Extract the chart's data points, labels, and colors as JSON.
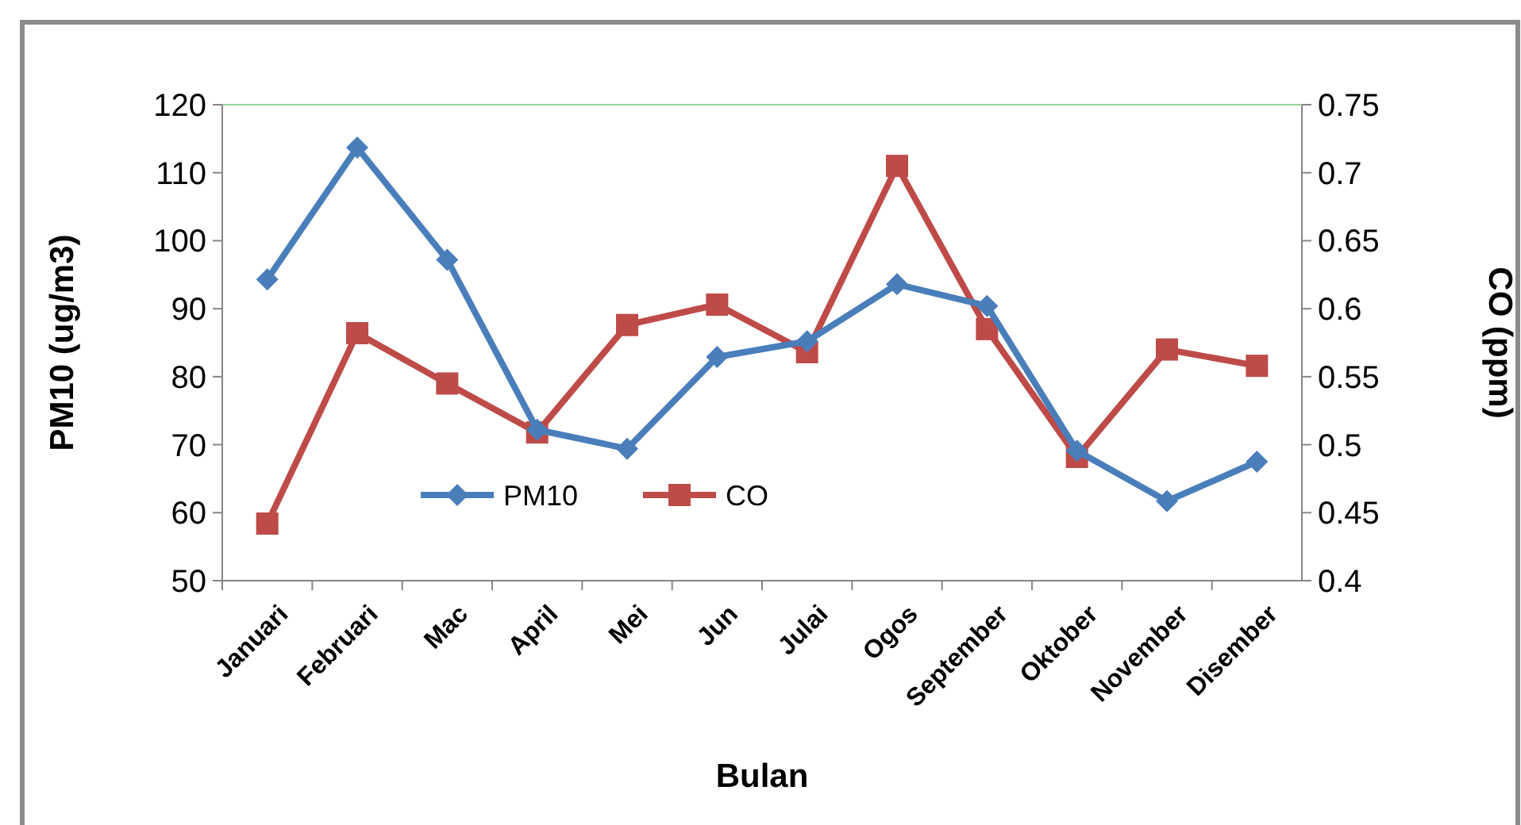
{
  "chart_data": {
    "type": "line",
    "xlabel": "Bulan",
    "ylabel": "PM10 (ug/m3)",
    "y2label": "CO (ppm)",
    "categories": [
      "Januari",
      "Februari",
      "Mac",
      "April",
      "Mei",
      "Jun",
      "Julai",
      "Ogos",
      "September",
      "Oktober",
      "November",
      "Disember"
    ],
    "series": [
      {
        "name": "PM10",
        "color": "#4a7ebb",
        "marker": "diamond",
        "values": [
          94.3,
          113.7,
          97.2,
          72.2,
          69.4,
          82.9,
          85.2,
          93.6,
          90.4,
          69.1,
          61.7,
          67.5
        ]
      },
      {
        "name": "CO",
        "color": "#be4b48",
        "marker": "square",
        "axis": "y2",
        "values": [
          0.442,
          0.582,
          0.545,
          0.509,
          0.588,
          0.603,
          0.568,
          0.705,
          0.585,
          0.491,
          0.57,
          0.558
        ]
      }
    ],
    "ylim": [
      50,
      120
    ],
    "yticks": [
      50,
      60,
      70,
      80,
      90,
      100,
      110,
      120
    ],
    "y2lim": [
      0.4,
      0.75
    ],
    "y2ticks": [
      0.4,
      0.45,
      0.5,
      0.55,
      0.6,
      0.65,
      0.7,
      0.75
    ],
    "grid": false,
    "legend": "bottom"
  }
}
